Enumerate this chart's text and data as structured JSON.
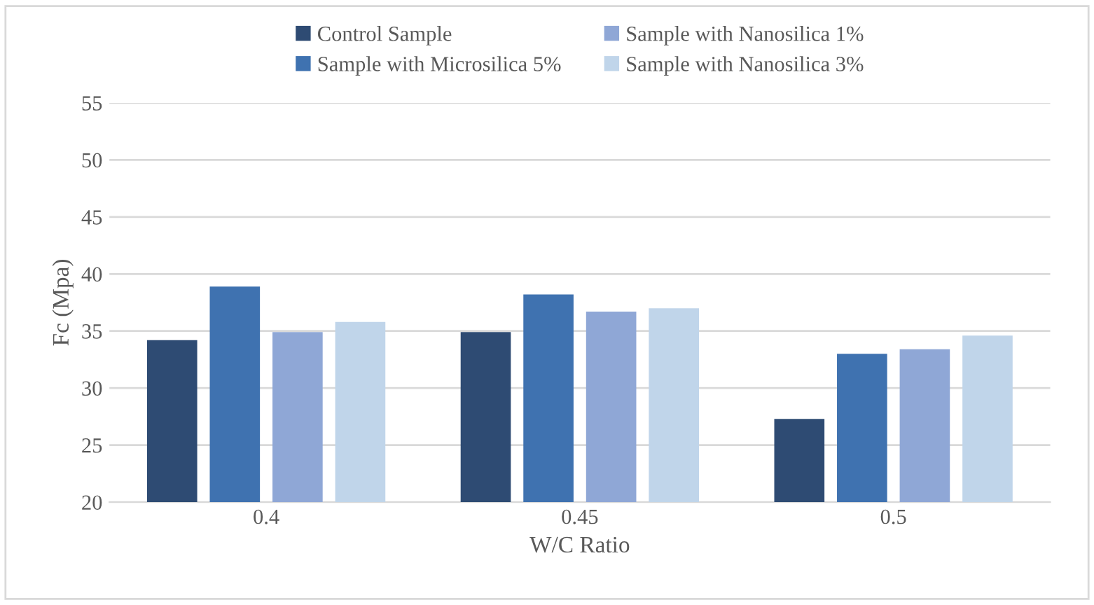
{
  "chart_data": {
    "type": "bar",
    "xlabel": "W/C Ratio",
    "ylabel": "Fc (Mpa)",
    "categories": [
      "0.4",
      "0.45",
      "0.5"
    ],
    "series": [
      {
        "name": "Control Sample",
        "color": "#2e4b73",
        "values": [
          34.2,
          34.9,
          27.3
        ]
      },
      {
        "name": "Sample with Microsilica 5%",
        "color": "#3f72b0",
        "values": [
          38.9,
          38.2,
          33.0
        ]
      },
      {
        "name": "Sample with Nanosilica 1%",
        "color": "#8fa7d6",
        "values": [
          34.9,
          36.7,
          33.4
        ]
      },
      {
        "name": "Sample with Nanosilica 3%",
        "color": "#c0d5ea",
        "values": [
          35.8,
          37.0,
          34.6
        ]
      }
    ],
    "ylim": [
      20,
      55
    ],
    "yticks": [
      20,
      25,
      30,
      35,
      40,
      45,
      50,
      55
    ],
    "grid": "y",
    "legend": "top"
  }
}
